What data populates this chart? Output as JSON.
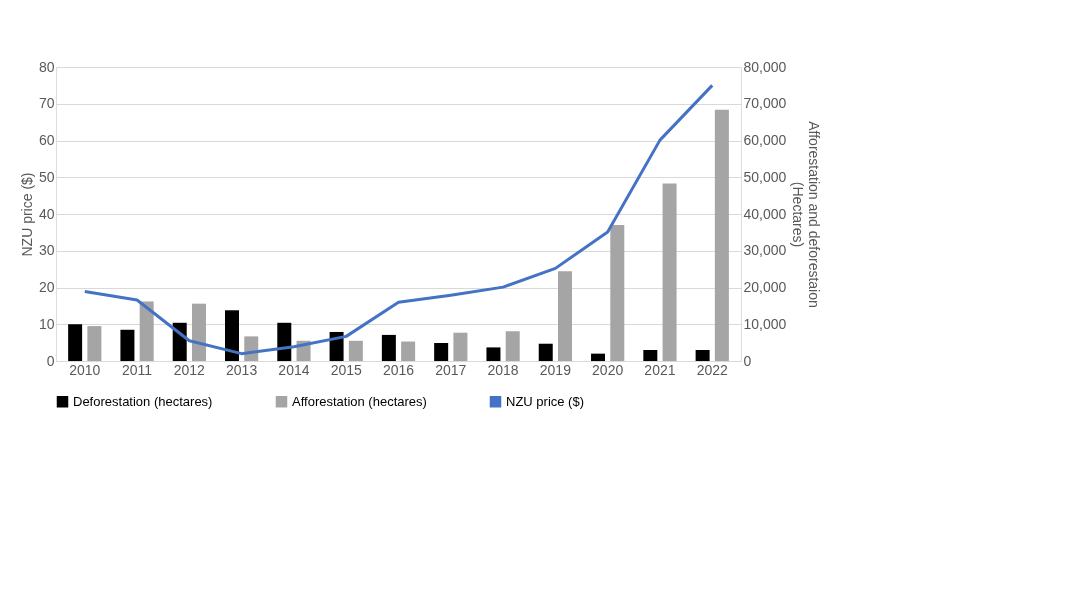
{
  "chart_data": {
    "type": "bar",
    "categories": [
      "2010",
      "2011",
      "2012",
      "2013",
      "2014",
      "2015",
      "2016",
      "2017",
      "2018",
      "2019",
      "2020",
      "2021",
      "2022"
    ],
    "series": [
      {
        "name": "Deforestation (hectares)",
        "axis": "y2",
        "color": "#000000",
        "values": [
          10000,
          8500,
          10400,
          13800,
          10400,
          7900,
          7100,
          4900,
          3700,
          4700,
          2000,
          3000,
          3000
        ]
      },
      {
        "name": "Afforestation (hectares)",
        "axis": "y2",
        "color": "#a5a5a5",
        "values": [
          9500,
          16200,
          15600,
          6700,
          5500,
          5500,
          5300,
          7700,
          8100,
          24400,
          37000,
          48300,
          68400
        ]
      },
      {
        "name": "NZU price ($)",
        "type": "line",
        "axis": "y",
        "color": "#4472c4",
        "values": [
          18.9,
          16.6,
          5.5,
          2,
          3.9,
          6.7,
          16,
          17.9,
          20.1,
          25.2,
          35.1,
          60.1,
          75
        ]
      }
    ],
    "ylabel": "NZU price ($)",
    "y2label": "Afforestation and deforestaion\n(Hectares)",
    "ylim": [
      0,
      80
    ],
    "yticks": [
      0,
      10,
      20,
      30,
      40,
      50,
      60,
      70,
      80
    ],
    "y2lim": [
      0,
      80000
    ],
    "y2ticks": [
      {
        "value": 0,
        "label": "0"
      },
      {
        "value": 10000,
        "label": "10,000"
      },
      {
        "value": 20000,
        "label": "20,000"
      },
      {
        "value": 30000,
        "label": "30,000"
      },
      {
        "value": 40000,
        "label": "40,000"
      },
      {
        "value": 50000,
        "label": "50,000"
      },
      {
        "value": 60000,
        "label": "60,000"
      },
      {
        "value": 70000,
        "label": "70,000"
      },
      {
        "value": 80000,
        "label": "80,000"
      }
    ],
    "grid": "y",
    "legend": "bottom",
    "marker": "none",
    "line_style": "solid"
  }
}
